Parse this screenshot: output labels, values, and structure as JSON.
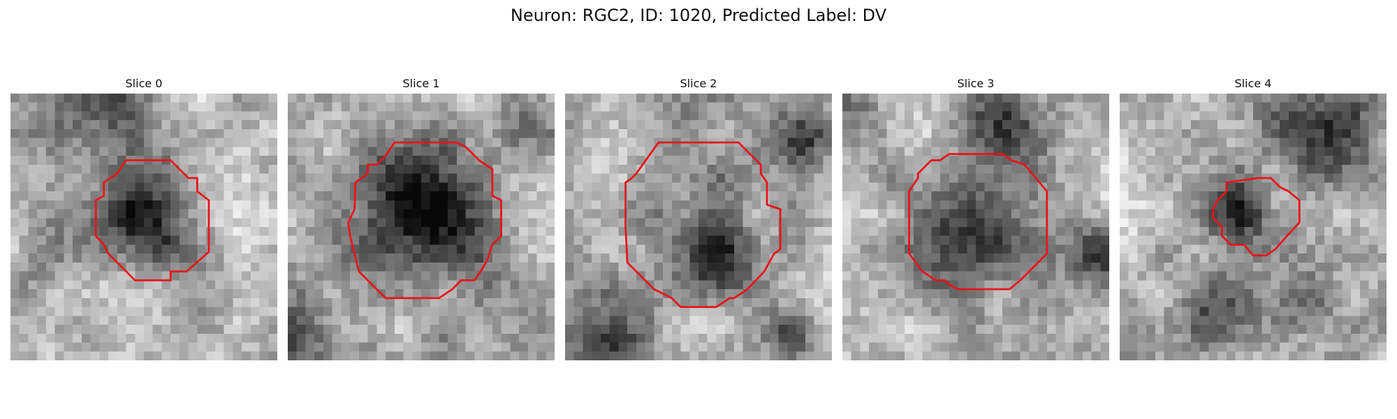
{
  "figure": {
    "title": "Neuron: RGC2, ID: 1020, Predicted Label: DV"
  },
  "panels": [
    {
      "title": "Slice 0",
      "icon": "grayscale-microscopy-slice"
    },
    {
      "title": "Slice 1",
      "icon": "grayscale-microscopy-slice"
    },
    {
      "title": "Slice 2",
      "icon": "grayscale-microscopy-slice"
    },
    {
      "title": "Slice 3",
      "icon": "grayscale-microscopy-slice"
    },
    {
      "title": "Slice 4",
      "icon": "grayscale-microscopy-slice"
    }
  ],
  "colors": {
    "contour": "#e8141c",
    "background": "#ffffff"
  }
}
